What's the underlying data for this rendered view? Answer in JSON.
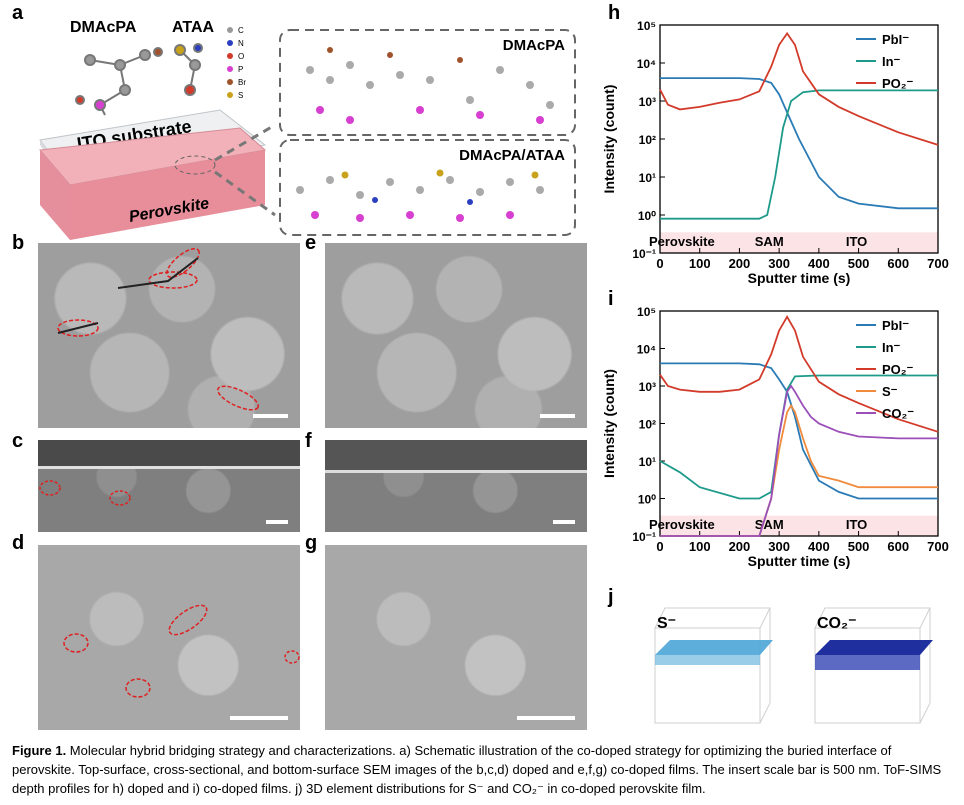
{
  "panel_labels": {
    "a": "a",
    "b": "b",
    "c": "c",
    "d": "d",
    "e": "e",
    "f": "f",
    "g": "g",
    "h": "h",
    "i": "i",
    "j": "j"
  },
  "schematic": {
    "mol1": "DMAcPA",
    "mol2": "ATAA",
    "legend": [
      "C",
      "N",
      "O",
      "P",
      "Br",
      "S"
    ],
    "legend_colors": [
      "#9a9a9a",
      "#2c3fbf",
      "#d23a2a",
      "#d63fd0",
      "#a0522d",
      "#c8a21a"
    ],
    "substrate": "ITO substrate",
    "perovskite": "Perovskite",
    "box1": "DMAcPA",
    "box2": "DMAcPA/ATAA"
  },
  "sims": {
    "regions": [
      "Perovskite",
      "SAM",
      "ITO"
    ],
    "xlabel": "Sputter time (s)",
    "ylabel": "Intensity (count)",
    "xticks": [
      "0",
      "100",
      "200",
      "300",
      "400",
      "500",
      "600",
      "700"
    ],
    "yticks": [
      "10⁻¹",
      "10⁰",
      "10¹",
      "10²",
      "10³",
      "10⁴",
      "10⁵"
    ]
  },
  "chart_data": [
    {
      "type": "line",
      "title": "",
      "xlabel": "Sputter time (s)",
      "ylabel": "Intensity (count)",
      "xlim": [
        0,
        700
      ],
      "ylim": [
        0.1,
        100000
      ],
      "yscale": "log",
      "series": [
        {
          "name": "PbI⁻",
          "color": "#2a7bb5",
          "x": [
            0,
            50,
            100,
            200,
            250,
            280,
            300,
            320,
            350,
            400,
            450,
            500,
            600,
            700
          ],
          "y": [
            4000,
            4000,
            4000,
            4000,
            3800,
            3000,
            1500,
            500,
            100,
            10,
            3,
            2,
            1.5,
            1.5
          ]
        },
        {
          "name": "In⁻",
          "color": "#1d9a8a",
          "x": [
            0,
            100,
            200,
            250,
            270,
            290,
            310,
            330,
            360,
            400,
            500,
            600,
            700
          ],
          "y": [
            0.8,
            0.8,
            0.8,
            0.8,
            1,
            10,
            200,
            1000,
            1700,
            1900,
            1900,
            1900,
            1900
          ]
        },
        {
          "name": "PO₂⁻",
          "color": "#d23a2a",
          "x": [
            0,
            20,
            50,
            100,
            150,
            200,
            250,
            280,
            300,
            320,
            340,
            360,
            400,
            450,
            500,
            600,
            700
          ],
          "y": [
            2000,
            800,
            600,
            700,
            900,
            1100,
            1800,
            8000,
            30000,
            60000,
            30000,
            6000,
            1500,
            700,
            400,
            150,
            70
          ]
        }
      ]
    },
    {
      "type": "line",
      "title": "",
      "xlabel": "Sputter time (s)",
      "ylabel": "Intensity (count)",
      "xlim": [
        0,
        700
      ],
      "ylim": [
        0.1,
        100000
      ],
      "yscale": "log",
      "series": [
        {
          "name": "PbI⁻",
          "color": "#2a7bb5",
          "x": [
            0,
            100,
            200,
            250,
            280,
            300,
            320,
            340,
            360,
            400,
            450,
            500,
            600,
            700
          ],
          "y": [
            4000,
            4000,
            4000,
            3800,
            3000,
            1500,
            700,
            150,
            20,
            3,
            1.5,
            1,
            1,
            1
          ]
        },
        {
          "name": "In⁻",
          "color": "#1d9a8a",
          "x": [
            0,
            50,
            100,
            200,
            250,
            280,
            300,
            320,
            340,
            400,
            500,
            600,
            700
          ],
          "y": [
            10,
            5,
            2,
            1,
            1,
            1.5,
            50,
            800,
            1800,
            1900,
            1900,
            1900,
            1900
          ]
        },
        {
          "name": "PO₂⁻",
          "color": "#d23a2a",
          "x": [
            0,
            20,
            50,
            100,
            150,
            200,
            250,
            280,
            300,
            320,
            340,
            360,
            400,
            450,
            500,
            600,
            700
          ],
          "y": [
            2000,
            1000,
            800,
            700,
            700,
            800,
            1500,
            7000,
            30000,
            70000,
            30000,
            6000,
            1300,
            600,
            350,
            130,
            60
          ]
        },
        {
          "name": "S⁻",
          "color": "#f08a3c",
          "x": [
            0,
            250,
            280,
            300,
            320,
            330,
            340,
            360,
            380,
            400,
            450,
            500,
            600,
            700
          ],
          "y": [
            0.1,
            0.1,
            1,
            20,
            200,
            300,
            200,
            40,
            10,
            4,
            3,
            2,
            2,
            2
          ]
        },
        {
          "name": "CO₂⁻",
          "color": "#9b4fb8",
          "x": [
            0,
            250,
            280,
            300,
            320,
            330,
            340,
            360,
            380,
            400,
            450,
            500,
            600,
            700
          ],
          "y": [
            0.1,
            0.1,
            1,
            50,
            700,
            1000,
            700,
            300,
            150,
            100,
            60,
            45,
            40,
            40
          ]
        }
      ]
    }
  ],
  "panel_j": {
    "label1": "S⁻",
    "label2": "CO₂⁻"
  },
  "caption": {
    "title": "Figure 1.",
    "text": " Molecular hybrid bridging strategy and characterizations. a) Schematic illustration of the co-doped strategy for optimizing the buried interface of perovskite. Top-surface, cross-sectional, and bottom-surface SEM images of the b,c,d) doped and e,f,g) co-doped films. The insert scale bar is 500 nm. ToF-SIMS depth profiles for h) doped and i) co-doped films. j) 3D element distributions for S⁻ and CO₂⁻ in co-doped perovskite film."
  }
}
